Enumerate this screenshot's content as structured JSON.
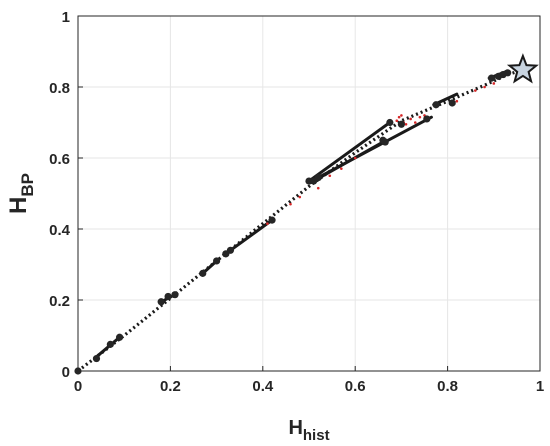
{
  "chart_data": {
    "type": "scatter",
    "title": "",
    "xlabel": {
      "main": "H",
      "sub": "hist"
    },
    "ylabel": {
      "main": "H",
      "sub": "BP"
    },
    "xlim": [
      0,
      1
    ],
    "ylim": [
      0,
      1
    ],
    "x_ticks": [
      "0",
      "0.2",
      "0.4",
      "0.6",
      "0.8",
      "1"
    ],
    "y_ticks": [
      "0",
      "0.2",
      "0.4",
      "0.6",
      "0.8",
      "1"
    ],
    "x_tick_values": [
      0,
      0.2,
      0.4,
      0.6,
      0.8,
      1
    ],
    "y_tick_values": [
      0,
      0.2,
      0.4,
      0.6,
      0.8,
      1
    ],
    "grid": true,
    "colors": {
      "line": "#1a1a1a",
      "points": "#262626",
      "red_points": "#d62728",
      "star_fill": "#c8d4e0",
      "grid": "#e6e6e6"
    },
    "dotted_path": {
      "x": [
        0,
        0.1,
        0.2,
        0.3,
        0.4,
        0.5,
        0.6,
        0.7,
        0.8,
        0.88,
        0.93,
        0.963
      ],
      "y": [
        0,
        0.1,
        0.205,
        0.31,
        0.415,
        0.52,
        0.615,
        0.705,
        0.76,
        0.805,
        0.835,
        0.848
      ]
    },
    "solid_segments": [
      {
        "x": [
          0.04,
          0.09
        ],
        "y": [
          0.04,
          0.095
        ]
      },
      {
        "x": [
          0.18,
          0.21
        ],
        "y": [
          0.195,
          0.215
        ]
      },
      {
        "x": [
          0.27,
          0.3
        ],
        "y": [
          0.275,
          0.31
        ]
      },
      {
        "x": [
          0.33,
          0.42
        ],
        "y": [
          0.34,
          0.425
        ]
      },
      {
        "x": [
          0.5,
          0.675
        ],
        "y": [
          0.535,
          0.7
        ]
      },
      {
        "x": [
          0.52,
          0.765
        ],
        "y": [
          0.545,
          0.715
        ]
      },
      {
        "x": [
          0.51,
          0.66
        ],
        "y": [
          0.535,
          0.645
        ]
      },
      {
        "x": [
          0.77,
          0.82
        ],
        "y": [
          0.75,
          0.78
        ]
      },
      {
        "x": [
          0.89,
          0.93
        ],
        "y": [
          0.825,
          0.845
        ]
      }
    ],
    "points": {
      "x": [
        0,
        0.04,
        0.07,
        0.09,
        0.18,
        0.195,
        0.21,
        0.27,
        0.3,
        0.32,
        0.33,
        0.42,
        0.5,
        0.51,
        0.52,
        0.66,
        0.665,
        0.675,
        0.7,
        0.755,
        0.775,
        0.81,
        0.895,
        0.91,
        0.92,
        0.93
      ],
      "y": [
        0,
        0.035,
        0.075,
        0.095,
        0.195,
        0.21,
        0.215,
        0.275,
        0.31,
        0.33,
        0.34,
        0.425,
        0.535,
        0.535,
        0.545,
        0.65,
        0.645,
        0.7,
        0.695,
        0.71,
        0.75,
        0.755,
        0.825,
        0.83,
        0.835,
        0.84
      ]
    },
    "red_points": {
      "x": [
        0.27,
        0.41,
        0.46,
        0.48,
        0.52,
        0.545,
        0.57,
        0.6,
        0.69,
        0.695,
        0.7,
        0.705,
        0.71,
        0.72,
        0.73,
        0.74,
        0.75,
        0.82,
        0.86,
        0.88,
        0.9,
        0.92
      ],
      "y": [
        0.28,
        0.415,
        0.47,
        0.49,
        0.515,
        0.55,
        0.57,
        0.6,
        0.705,
        0.715,
        0.72,
        0.7,
        0.695,
        0.71,
        0.7,
        0.715,
        0.72,
        0.76,
        0.79,
        0.8,
        0.81,
        0.83
      ]
    },
    "star": {
      "x": 0.963,
      "y": 0.848
    }
  }
}
